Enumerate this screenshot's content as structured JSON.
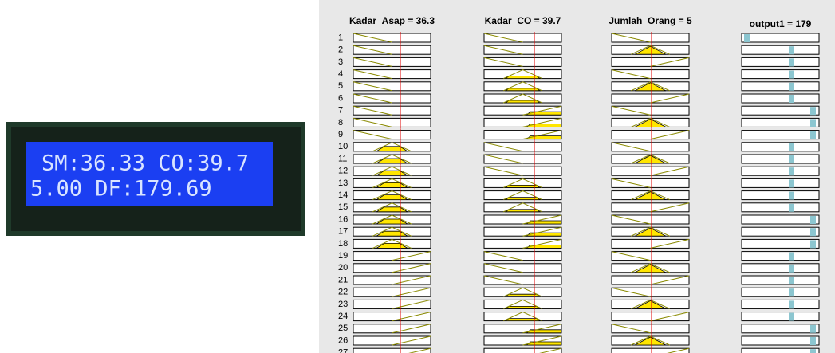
{
  "lcd": {
    "line1": "SM:36.33 CO:39.7",
    "line2": "5.00 DF:179.69"
  },
  "rule_viewer": {
    "headers": [
      "Kadar_Asap = 36.3",
      "Kadar_CO = 39.7",
      "Jumlah_Orang = 5",
      "output1 = 179"
    ],
    "rows": [
      "1",
      "2",
      "3",
      "4",
      "5",
      "6",
      "7",
      "8",
      "9",
      "10",
      "11",
      "12",
      "13",
      "14",
      "15",
      "16",
      "17",
      "18",
      "19",
      "20",
      "21",
      "22",
      "23",
      "24",
      "25",
      "26",
      "27"
    ]
  }
}
